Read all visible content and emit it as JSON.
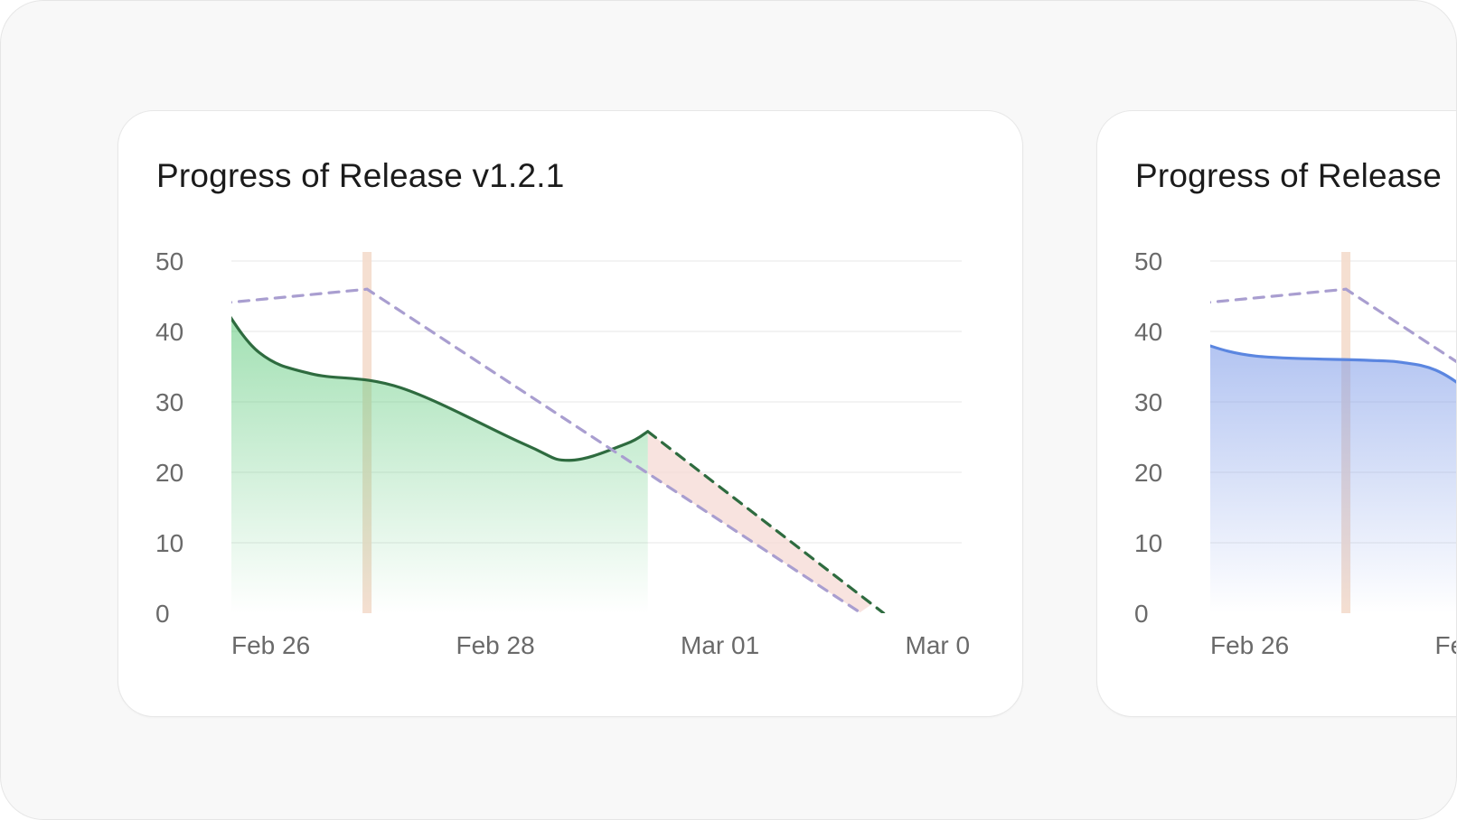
{
  "chart_data": [
    {
      "type": "line",
      "title": "Progress of Release v1.2.1",
      "categories": [
        "Feb 26",
        "Feb 28",
        "Mar 01",
        "Mar 0"
      ],
      "x_range": [
        -0.05,
        3.3
      ],
      "ylim": [
        0,
        50
      ],
      "y_ticks": [
        0,
        10,
        20,
        30,
        40,
        50
      ],
      "grid": true,
      "series": [
        {
          "color": "#2e6b3f",
          "fill": "#5cc97a",
          "style": "solid-area",
          "points": [
            [
              -0.05,
              44
            ],
            [
              0.12,
              37
            ],
            [
              0.35,
              34
            ],
            [
              0.75,
              32
            ],
            [
              1.3,
              24
            ],
            [
              1.5,
              21.7
            ],
            [
              1.75,
              24
            ],
            [
              1.85,
              25.8
            ]
          ]
        },
        {
          "color": "#2e6b3f",
          "style": "dashed",
          "points": [
            [
              1.85,
              25.8
            ],
            [
              2.9,
              0
            ]
          ]
        },
        {
          "color": "#a99ed0",
          "style": "dashed",
          "points": [
            [
              -0.05,
              44
            ],
            [
              0.6,
              46
            ],
            [
              2.8,
              0
            ]
          ]
        }
      ],
      "markers": [
        {
          "x": 0.6,
          "color": "#f4dccc"
        }
      ]
    },
    {
      "type": "line",
      "title": "Progress of Release",
      "categories": [
        "Feb 26",
        "Fe"
      ],
      "x_range": [
        -0.05,
        3.3
      ],
      "ylim": [
        0,
        50
      ],
      "y_ticks": [
        0,
        10,
        20,
        30,
        40,
        50
      ],
      "grid": true,
      "series": [
        {
          "color": "#5b86e0",
          "fill": "#7f9ce8",
          "style": "solid-area",
          "points": [
            [
              -0.05,
              38.4
            ],
            [
              0.2,
              36.5
            ],
            [
              0.7,
              35.9
            ],
            [
              0.85,
              35.6
            ],
            [
              1.0,
              34.5
            ],
            [
              1.15,
              31.5
            ],
            [
              1.3,
              27.7
            ]
          ]
        },
        {
          "color": "#a99ed0",
          "style": "dashed",
          "points": [
            [
              -0.05,
              44
            ],
            [
              0.6,
              46
            ],
            [
              2.8,
              0
            ]
          ]
        }
      ],
      "markers": [
        {
          "x": 0.6,
          "color": "#f4dccc"
        }
      ]
    }
  ]
}
